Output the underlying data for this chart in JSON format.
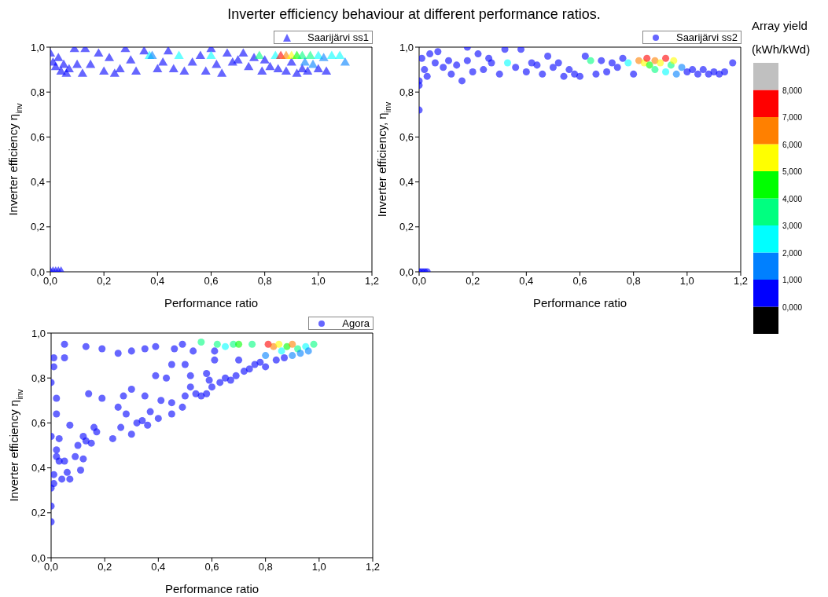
{
  "chart_data": [
    {
      "type": "scatter",
      "title": "Inverter efficiency behaviour at different performance ratios.",
      "xlabel": "Performance ratio",
      "ylabel": "Inverter efficiency η$_{inv}$",
      "clabel": "Array yield (kWh/kWd)",
      "clim": [
        -1,
        9
      ],
      "cticks": [
        {
          "value": 0,
          "label": "0,000"
        },
        {
          "value": 1,
          "label": "1,000"
        },
        {
          "value": 2,
          "label": "2,000"
        },
        {
          "value": 3,
          "label": "3,000"
        },
        {
          "value": 4,
          "label": "4,000"
        },
        {
          "value": 5,
          "label": "5,000"
        },
        {
          "value": 6,
          "label": "6,000"
        },
        {
          "value": 7,
          "label": "7,000"
        },
        {
          "value": 8,
          "label": "8,000"
        }
      ],
      "xlim": [
        0,
        1.2
      ],
      "xticks": [
        {
          "value": 0,
          "label": "0,0"
        },
        {
          "value": 0.2,
          "label": "0,2"
        },
        {
          "value": 0.4,
          "label": "0,4"
        },
        {
          "value": 0.6,
          "label": "0,6"
        },
        {
          "value": 0.8,
          "label": "0,8"
        },
        {
          "value": 1,
          "label": "1,0"
        },
        {
          "value": 1.2,
          "label": "1,2"
        }
      ],
      "ylim": [
        0,
        1
      ],
      "yticks": [
        {
          "value": 0,
          "label": "0,0"
        },
        {
          "value": 0.2,
          "label": "0,2"
        },
        {
          "value": 0.4,
          "label": "0,4"
        },
        {
          "value": 0.6,
          "label": "0,6"
        },
        {
          "value": 0.8,
          "label": "0,8"
        },
        {
          "value": 1,
          "label": "1,0"
        }
      ],
      "legend": "top right",
      "marker": "triangle",
      "series": [
        {
          "name": "Saarijärvi ss1",
          "x": [
            0,
            0.01,
            0.02,
            0.03,
            0.04,
            0,
            0.01,
            0.02,
            0.03,
            0.04,
            0.05,
            0.06,
            0.07,
            0.09,
            0.1,
            0.12,
            0.13,
            0.15,
            0.18,
            0.2,
            0.22,
            0.24,
            0.26,
            0.28,
            0.3,
            0.32,
            0.35,
            0.37,
            0.38,
            0.4,
            0.42,
            0.44,
            0.46,
            0.48,
            0.5,
            0.53,
            0.56,
            0.58,
            0.6,
            0.6,
            0.62,
            0.64,
            0.66,
            0.68,
            0.7,
            0.72,
            0.74,
            0.76,
            0.78,
            0.79,
            0.8,
            0.82,
            0.84,
            0.85,
            0.86,
            0.88,
            0.88,
            0.9,
            0.9,
            0.92,
            0.92,
            0.94,
            0.94,
            0.95,
            0.96,
            0.97,
            0.98,
            1.0,
            1.0,
            1.02,
            1.03,
            1.05,
            1.08,
            1.1
          ],
          "values": [
            0,
            0,
            0,
            0,
            0,
            0.97,
            0.93,
            0.91,
            0.95,
            0.89,
            0.92,
            0.88,
            0.9,
            0.99,
            0.92,
            0.88,
            0.99,
            0.92,
            0.97,
            0.89,
            0.95,
            0.88,
            0.9,
            0.99,
            0.94,
            0.89,
            0.98,
            0.96,
            0.96,
            0.9,
            0.93,
            0.98,
            0.9,
            0.96,
            0.89,
            0.93,
            0.96,
            0.89,
            0.99,
            0.96,
            0.92,
            0.88,
            0.97,
            0.93,
            0.94,
            0.97,
            0.91,
            0.95,
            0.96,
            0.89,
            0.94,
            0.91,
            0.96,
            0.9,
            0.96,
            0.96,
            0.89,
            0.93,
            0.96,
            0.88,
            0.96,
            0.9,
            0.96,
            0.93,
            0.89,
            0.96,
            0.92,
            0.96,
            0.9,
            0.95,
            0.89,
            0.96,
            0.96,
            0.93
          ],
          "cvalues": [
            0.5,
            0.5,
            0.5,
            0.5,
            0.5,
            0.5,
            0.5,
            0.5,
            0.5,
            0.5,
            0.5,
            0.5,
            0.5,
            0.5,
            0.5,
            0.5,
            0.5,
            0.5,
            0.5,
            0.5,
            0.5,
            0.5,
            0.5,
            0.5,
            0.5,
            0.5,
            0.5,
            2.5,
            1.5,
            0.5,
            0.5,
            0.5,
            0.5,
            2.5,
            0.5,
            0.5,
            0.5,
            0.5,
            0.5,
            2.5,
            0.5,
            0.5,
            0.5,
            0.5,
            0.5,
            0.5,
            0.5,
            0.5,
            3.5,
            0.5,
            0.5,
            0.5,
            2.5,
            0.5,
            7.5,
            6.5,
            0.5,
            0.5,
            5.5,
            0.5,
            4.5,
            0.5,
            3.5,
            1.5,
            0.5,
            3.5,
            1.5,
            2.5,
            0.5,
            1.5,
            0.5,
            2.5,
            2.5,
            1.5
          ]
        }
      ]
    },
    {
      "type": "scatter",
      "xlabel": "Performance ratio",
      "ylabel": "Inverter efficiency, η$_{inv}$",
      "xlim": [
        0,
        1.2
      ],
      "xticks": [
        {
          "value": 0,
          "label": "0,0"
        },
        {
          "value": 0.2,
          "label": "0,2"
        },
        {
          "value": 0.4,
          "label": "0,4"
        },
        {
          "value": 0.6,
          "label": "0,6"
        },
        {
          "value": 0.8,
          "label": "0,8"
        },
        {
          "value": 1,
          "label": "1,0"
        },
        {
          "value": 1.2,
          "label": "1,2"
        }
      ],
      "ylim": [
        0,
        1
      ],
      "yticks": [
        {
          "value": 0,
          "label": "0,0"
        },
        {
          "value": 0.2,
          "label": "0,2"
        },
        {
          "value": 0.4,
          "label": "0,4"
        },
        {
          "value": 0.6,
          "label": "0,6"
        },
        {
          "value": 0.8,
          "label": "0,8"
        },
        {
          "value": 1,
          "label": "1,0"
        }
      ],
      "legend": "top right",
      "marker": "circle",
      "series": [
        {
          "name": "Saarijärvi ss2",
          "x": [
            0,
            0.01,
            0.02,
            0.03,
            0,
            0,
            0,
            0.01,
            0.02,
            0.03,
            0.04,
            0.06,
            0.07,
            0.09,
            0.11,
            0.12,
            0.14,
            0.16,
            0.18,
            0.18,
            0.2,
            0.22,
            0.24,
            0.26,
            0.27,
            0.3,
            0.32,
            0.33,
            0.36,
            0.38,
            0.4,
            0.42,
            0.44,
            0.46,
            0.48,
            0.5,
            0.52,
            0.54,
            0.56,
            0.58,
            0.6,
            0.62,
            0.64,
            0.66,
            0.68,
            0.7,
            0.72,
            0.74,
            0.76,
            0.78,
            0.8,
            0.82,
            0.84,
            0.85,
            0.86,
            0.88,
            0.88,
            0.9,
            0.92,
            0.92,
            0.94,
            0.95,
            0.96,
            0.98,
            1.0,
            1.02,
            1.04,
            1.06,
            1.08,
            1.1,
            1.12,
            1.14,
            1.17
          ],
          "values": [
            0,
            0,
            0,
            0,
            0.72,
            0.83,
            0.85,
            0.95,
            0.9,
            0.87,
            0.97,
            0.93,
            0.98,
            0.91,
            0.94,
            0.88,
            0.92,
            0.85,
            0.94,
            1.0,
            0.89,
            0.97,
            0.9,
            0.95,
            0.93,
            0.88,
            0.99,
            0.93,
            0.91,
            0.99,
            0.89,
            0.93,
            0.92,
            0.88,
            0.96,
            0.91,
            0.93,
            0.87,
            0.9,
            0.88,
            0.87,
            0.96,
            0.94,
            0.88,
            0.94,
            0.89,
            0.93,
            0.91,
            0.95,
            0.93,
            0.88,
            0.94,
            0.93,
            0.95,
            0.92,
            0.94,
            0.9,
            0.93,
            0.95,
            0.89,
            0.92,
            0.94,
            0.88,
            0.91,
            0.89,
            0.9,
            0.88,
            0.9,
            0.88,
            0.89,
            0.88,
            0.89,
            0.93
          ],
          "colors": [
            "#0000ff",
            "#0000ff",
            "#0000ff",
            "#0000ff",
            "#0000ff",
            "#0000ff",
            "#0000ff",
            "#0000ff",
            "#0000ff",
            "#0000ff",
            "#0000ff",
            "#0000ff",
            "#0000ff",
            "#0000ff",
            "#0000ff",
            "#0000ff",
            "#0000ff",
            "#0000ff",
            "#0000ff",
            "#0000ff",
            "#0000ff",
            "#0000ff",
            "#0000ff",
            "#0000ff",
            "#0000ff",
            "#0000ff",
            "#0000ff",
            "#00ffff",
            "#0000ff",
            "#0000ff",
            "#0000ff",
            "#0000ff",
            "#0000ff",
            "#0000ff",
            "#0000ff",
            "#0000ff",
            "#0000ff",
            "#0000ff",
            "#0000ff",
            "#0000ff",
            "#0000ff",
            "#0000ff",
            "#00ff80",
            "#0000ff",
            "#0000ff",
            "#0000ff",
            "#0000ff",
            "#0000ff",
            "#0000ff",
            "#00ffff",
            "#0000ff",
            "#ff8000",
            "#ffff00",
            "#ff0000",
            "#00ff00",
            "#ff8000",
            "#00ff80",
            "#ffff00",
            "#ff0000",
            "#00ffff",
            "#00ff80",
            "#ffff00",
            "#0080ff",
            "#0080ff",
            "#0000ff",
            "#0000ff",
            "#0000ff",
            "#0000ff",
            "#0000ff",
            "#0000ff",
            "#0000ff",
            "#0000ff",
            "#0000ff"
          ]
        }
      ]
    },
    {
      "type": "scatter",
      "xlabel": "Performance ratio",
      "ylabel": "Inverter efficiency η$_{inv}$",
      "xlim": [
        0,
        1.2
      ],
      "xticks": [
        {
          "value": 0,
          "label": "0,0"
        },
        {
          "value": 0.2,
          "label": "0,2"
        },
        {
          "value": 0.4,
          "label": "0,4"
        },
        {
          "value": 0.6,
          "label": "0,6"
        },
        {
          "value": 0.8,
          "label": "0,8"
        },
        {
          "value": 1,
          "label": "1,0"
        },
        {
          "value": 1.2,
          "label": "1,2"
        }
      ],
      "ylim": [
        0,
        1
      ],
      "yticks": [
        {
          "value": 0,
          "label": "0,0"
        },
        {
          "value": 0.2,
          "label": "0,2"
        },
        {
          "value": 0.4,
          "label": "0,4"
        },
        {
          "value": 0.6,
          "label": "0,6"
        },
        {
          "value": 0.8,
          "label": "0,8"
        },
        {
          "value": 1,
          "label": "1,0"
        }
      ],
      "legend": "top right",
      "marker": "circle",
      "series": [
        {
          "name": "Agora",
          "x": [
            0,
            0,
            0,
            0,
            0.01,
            0.01,
            0,
            0.01,
            0.01,
            0.02,
            0.02,
            0.02,
            0.02,
            0.03,
            0.03,
            0.04,
            0.05,
            0.05,
            0.05,
            0.06,
            0.07,
            0.07,
            0.09,
            0.1,
            0.11,
            0.12,
            0.12,
            0.13,
            0.14,
            0.15,
            0.16,
            0.17,
            0.13,
            0.19,
            0.19,
            0.23,
            0.25,
            0.26,
            0.27,
            0.25,
            0.28,
            0.3,
            0.3,
            0.3,
            0.32,
            0.34,
            0.35,
            0.35,
            0.36,
            0.37,
            0.39,
            0.39,
            0.4,
            0.41,
            0.43,
            0.45,
            0.45,
            0.45,
            0.46,
            0.49,
            0.49,
            0.5,
            0.5,
            0.52,
            0.52,
            0.53,
            0.54,
            0.56,
            0.56,
            0.58,
            0.58,
            0.59,
            0.6,
            0.61,
            0.61,
            0.62,
            0.63,
            0.65,
            0.65,
            0.67,
            0.68,
            0.69,
            0.7,
            0.7,
            0.72,
            0.74,
            0.75,
            0.76,
            0.78,
            0.8,
            0.8,
            0.81,
            0.83,
            0.84,
            0.85,
            0.86,
            0.87,
            0.88,
            0.9,
            0.9,
            0.92,
            0.93,
            0.95,
            0.96,
            0.98
          ],
          "values": [
            0.16,
            0.23,
            0.31,
            0.54,
            0.37,
            0.33,
            0.78,
            0.89,
            0.85,
            0.71,
            0.45,
            0.64,
            0.48,
            0.43,
            0.53,
            0.35,
            0.43,
            0.89,
            0.95,
            0.38,
            0.35,
            0.59,
            0.45,
            0.5,
            0.39,
            0.44,
            0.54,
            0.52,
            0.73,
            0.51,
            0.58,
            0.56,
            0.94,
            0.71,
            0.93,
            0.53,
            0.67,
            0.58,
            0.72,
            0.91,
            0.64,
            0.55,
            0.75,
            0.92,
            0.6,
            0.61,
            0.72,
            0.93,
            0.59,
            0.65,
            0.81,
            0.94,
            0.62,
            0.7,
            0.8,
            0.64,
            0.69,
            0.86,
            0.93,
            0.67,
            0.95,
            0.72,
            0.86,
            0.76,
            0.81,
            0.92,
            0.73,
            0.72,
            0.96,
            0.73,
            0.82,
            0.79,
            0.76,
            0.88,
            0.92,
            0.95,
            0.78,
            0.8,
            0.94,
            0.79,
            0.95,
            0.81,
            0.95,
            0.88,
            0.83,
            0.84,
            0.95,
            0.86,
            0.87,
            0.85,
            0.9,
            0.95,
            0.94,
            0.88,
            0.95,
            0.92,
            0.89,
            0.94,
            0.9,
            0.95,
            0.93,
            0.91,
            0.94,
            0.92,
            0.95
          ],
          "colors": [
            "#0000ff",
            "#0000ff",
            "#0000ff",
            "#0000ff",
            "#0000ff",
            "#0000ff",
            "#0000ff",
            "#0000ff",
            "#0000ff",
            "#0000ff",
            "#0000ff",
            "#0000ff",
            "#0000ff",
            "#0000ff",
            "#0000ff",
            "#0000ff",
            "#0000ff",
            "#0000ff",
            "#0000ff",
            "#0000ff",
            "#0000ff",
            "#0000ff",
            "#0000ff",
            "#0000ff",
            "#0000ff",
            "#0000ff",
            "#0000ff",
            "#0000ff",
            "#0000ff",
            "#0000ff",
            "#0000ff",
            "#0000ff",
            "#0000ff",
            "#0000ff",
            "#0000ff",
            "#0000ff",
            "#0000ff",
            "#0000ff",
            "#0000ff",
            "#0000ff",
            "#0000ff",
            "#0000ff",
            "#0000ff",
            "#0000ff",
            "#0000ff",
            "#0000ff",
            "#0000ff",
            "#0000ff",
            "#0000ff",
            "#0000ff",
            "#0000ff",
            "#0000ff",
            "#0000ff",
            "#0000ff",
            "#0000ff",
            "#0000ff",
            "#0000ff",
            "#0000ff",
            "#0000ff",
            "#0000ff",
            "#0000ff",
            "#0000ff",
            "#0000ff",
            "#0000ff",
            "#0000ff",
            "#0000ff",
            "#0000ff",
            "#0000ff",
            "#00ff80",
            "#0000ff",
            "#0000ff",
            "#0000ff",
            "#0000ff",
            "#0000ff",
            "#0000ff",
            "#00ff80",
            "#0000ff",
            "#0000ff",
            "#00ffff",
            "#0000ff",
            "#00ff80",
            "#0000ff",
            "#00ff00",
            "#0000ff",
            "#0000ff",
            "#0000ff",
            "#00ff80",
            "#0000ff",
            "#0000ff",
            "#0000ff",
            "#0080ff",
            "#ff0000",
            "#ff8000",
            "#0000ff",
            "#ffff00",
            "#00ffff",
            "#0000ff",
            "#00ff00",
            "#0080ff",
            "#ff8000",
            "#00ff80",
            "#0080ff",
            "#00ffff",
            "#0080ff",
            "#00ff80"
          ]
        }
      ]
    }
  ]
}
